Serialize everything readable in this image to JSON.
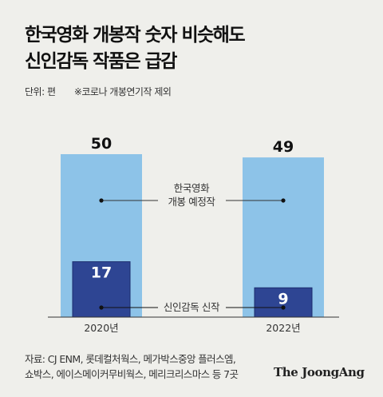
{
  "title_lines": [
    "한국영화 개봉작 숫자 비슷해도",
    "신인감독 작품은 급감"
  ],
  "unit_note": "단위: 편",
  "exclusion_note": "※코로나 개봉연기작 제외",
  "source_lines": [
    "자료: CJ ENM, 롯데컬처웍스, 메가박스중앙 플러스엠,",
    "쇼박스, 에이스메이커무비웍스, 메리크리스마스 등 7곳"
  ],
  "brand": "The JoongAng",
  "colors": {
    "total": "#8dc3e8",
    "new": "#2e4593",
    "background": "#efefeb"
  },
  "chart_data": {
    "type": "bar",
    "categories": [
      "2020년",
      "2022년"
    ],
    "series": [
      {
        "name": "한국영화 개봉 예정작",
        "name_lines": [
          "한국영화",
          "개봉 예정작"
        ],
        "values": [
          50,
          49
        ]
      },
      {
        "name": "신인감독 신작",
        "name_lines": [
          "신인감독 신작"
        ],
        "values": [
          17,
          9
        ]
      }
    ],
    "ylim": [
      0,
      50
    ]
  }
}
